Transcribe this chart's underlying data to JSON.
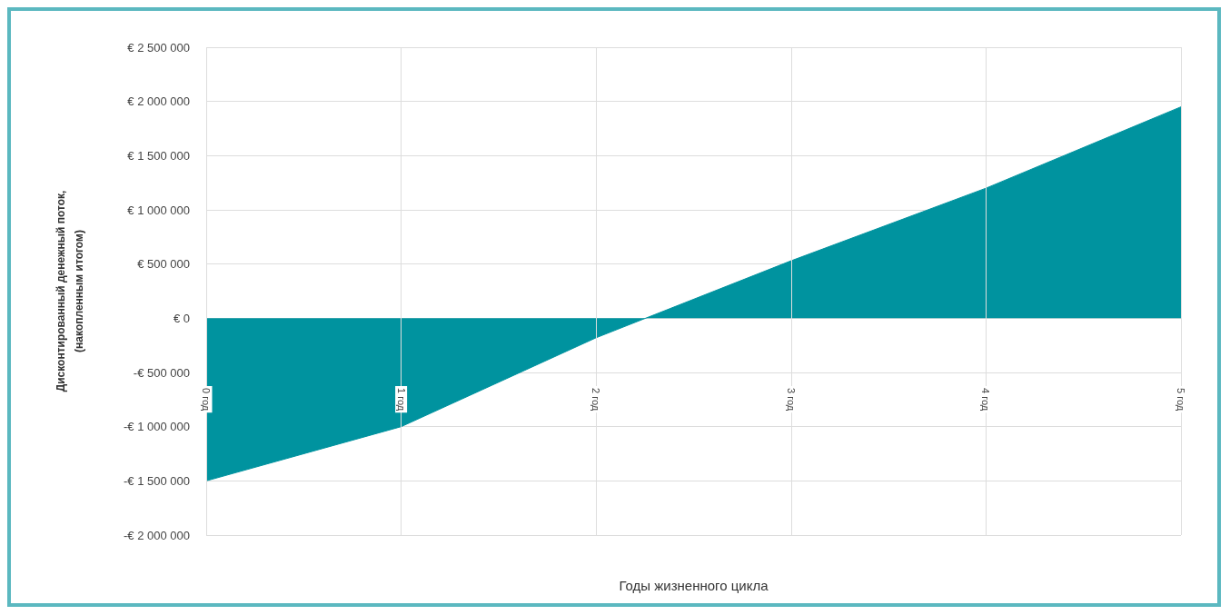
{
  "chart_data": {
    "type": "area",
    "xlabel": "Годы жизненного цикла",
    "ylabel": "Дисконтированный денежный поток,\n(накопленным итогом)",
    "categories": [
      "0 год",
      "1 год",
      "2 год",
      "3 год",
      "4 год",
      "5 год"
    ],
    "series": [
      {
        "color": "#00939f",
        "values": [
          -1500000,
          -1000000,
          -180000,
          530000,
          1200000,
          1950000
        ]
      }
    ],
    "ylim": [
      -2000000,
      2500000
    ],
    "yticks": [
      {
        "value": -2000000,
        "label": "-€ 2 000 000"
      },
      {
        "value": -1500000,
        "label": "-€ 1 500 000"
      },
      {
        "value": -1000000,
        "label": "-€ 1 000 000"
      },
      {
        "value": -500000,
        "label": "-€ 500 000"
      },
      {
        "value": 0,
        "label": "€ 0"
      },
      {
        "value": 500000,
        "label": "€ 500 000"
      },
      {
        "value": 1000000,
        "label": "€ 1 000 000"
      },
      {
        "value": 1500000,
        "label": "€ 1 500 000"
      },
      {
        "value": 2000000,
        "label": "€ 2 000 000"
      },
      {
        "value": 2500000,
        "label": "€ 2 500 000"
      }
    ],
    "grid": true
  }
}
